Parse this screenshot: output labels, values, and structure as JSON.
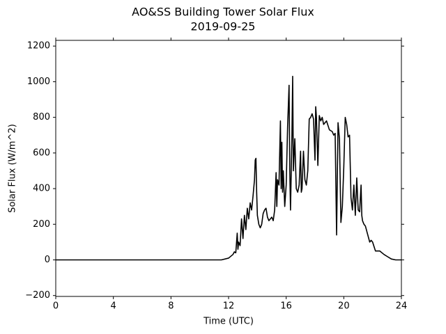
{
  "chart_data": {
    "type": "line",
    "title": "AO&SS Building Tower Solar Flux",
    "subtitle": "2019-09-25",
    "x_label": "Time (UTC)",
    "y_label": "Solar Flux (W/m^2)",
    "xlim": [
      0,
      24
    ],
    "xticks": [
      0,
      4,
      8,
      12,
      16,
      20,
      24
    ],
    "ylim": [
      -205,
      1232
    ],
    "yticks": [
      {
        "value": -200,
        "label": "−200"
      },
      0,
      200,
      400,
      600,
      800,
      1000,
      1200
    ],
    "grid": false,
    "series": [
      {
        "color": "#000000",
        "x": [
          0,
          10.5,
          11.5,
          12,
          12.3,
          12.4,
          12.5,
          12.6,
          12.65,
          12.7,
          12.8,
          12.9,
          13.0,
          13.1,
          13.2,
          13.3,
          13.4,
          13.5,
          13.6,
          13.7,
          13.8,
          13.85,
          13.9,
          13.95,
          14.0,
          14.1,
          14.2,
          14.3,
          14.4,
          14.5,
          14.6,
          14.7,
          14.8,
          14.9,
          15.0,
          15.1,
          15.2,
          15.3,
          15.35,
          15.4,
          15.5,
          15.6,
          15.65,
          15.7,
          15.75,
          15.8,
          15.9,
          16.0,
          16.1,
          16.2,
          16.25,
          16.3,
          16.4,
          16.45,
          16.5,
          16.6,
          16.7,
          16.8,
          16.9,
          17.0,
          17.05,
          17.1,
          17.2,
          17.3,
          17.4,
          17.5,
          17.6,
          17.7,
          17.8,
          17.9,
          18.0,
          18.05,
          18.1,
          18.2,
          18.3,
          18.4,
          18.5,
          18.6,
          18.8,
          19.0,
          19.2,
          19.3,
          19.4,
          19.5,
          19.6,
          19.7,
          19.8,
          19.9,
          20.0,
          20.1,
          20.2,
          20.3,
          20.4,
          20.5,
          20.6,
          20.7,
          20.8,
          20.9,
          21.0,
          21.1,
          21.2,
          21.25,
          21.3,
          21.4,
          21.5,
          21.6,
          21.8,
          21.9,
          22.0,
          22.2,
          22.5,
          22.8,
          23.0,
          23.3,
          23.6,
          24
        ],
        "values": [
          0,
          0,
          0,
          10,
          30,
          45,
          40,
          150,
          60,
          100,
          80,
          230,
          120,
          250,
          170,
          290,
          230,
          320,
          280,
          360,
          450,
          560,
          570,
          380,
          250,
          200,
          180,
          200,
          260,
          280,
          290,
          240,
          220,
          230,
          240,
          220,
          280,
          490,
          300,
          450,
          420,
          780,
          400,
          660,
          380,
          500,
          300,
          420,
          750,
          980,
          500,
          280,
          700,
          1030,
          500,
          680,
          400,
          380,
          420,
          610,
          380,
          400,
          610,
          450,
          420,
          500,
          790,
          800,
          820,
          790,
          560,
          860,
          800,
          530,
          810,
          780,
          800,
          760,
          780,
          730,
          720,
          700,
          710,
          140,
          770,
          680,
          210,
          300,
          520,
          800,
          760,
          690,
          700,
          350,
          280,
          420,
          250,
          460,
          280,
          270,
          420,
          250,
          220,
          200,
          190,
          160,
          100,
          110,
          100,
          50,
          50,
          30,
          20,
          5,
          0,
          0
        ]
      }
    ]
  }
}
